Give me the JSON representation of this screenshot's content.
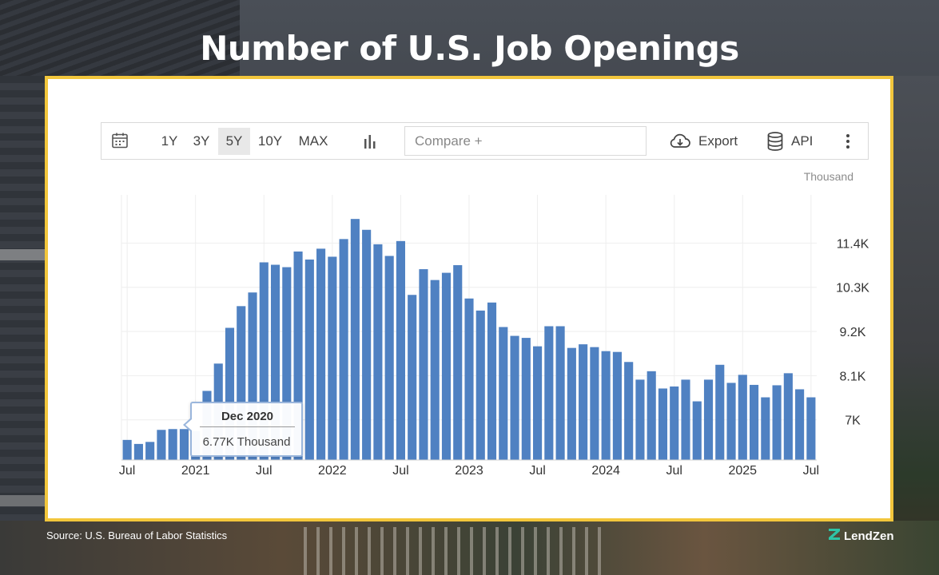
{
  "headline": "Number of U.S. Job Openings",
  "toolbar": {
    "ranges": [
      "1Y",
      "3Y",
      "5Y",
      "10Y",
      "MAX"
    ],
    "active_range": "5Y",
    "compare_placeholder": "Compare +",
    "export_label": "Export",
    "api_label": "API",
    "icons": [
      "calendar-icon",
      "bar-chart-icon",
      "cloud-download-icon",
      "database-icon",
      "more-vertical-icon"
    ]
  },
  "tooltip": {
    "title": "Dec 2020",
    "value": "6.77K Thousand"
  },
  "source": "Source: U.S. Bureau of Labor Statistics",
  "brand": "LendZen",
  "colors": {
    "bar": "#4f81c2",
    "frame": "#f2c63c",
    "tooltip_border": "#9ab6dc"
  },
  "chart_data": {
    "type": "bar",
    "unit_label": "Thousand",
    "x_tick_labels": [
      "Jul",
      "2021",
      "Jul",
      "2022",
      "Jul",
      "2023",
      "Jul",
      "2024",
      "Jul",
      "2025",
      "Jul"
    ],
    "y_tick_labels": [
      "7K",
      "8.1K",
      "9.2K",
      "10.3K",
      "11.4K"
    ],
    "y_ticks": [
      7000,
      8100,
      9200,
      10300,
      11400
    ],
    "ylim": [
      6000,
      12600
    ],
    "grid": true,
    "categories": [
      "Jul 2020",
      "Aug 2020",
      "Sep 2020",
      "Oct 2020",
      "Nov 2020",
      "Dec 2020",
      "Jan 2021",
      "Feb 2021",
      "Mar 2021",
      "Apr 2021",
      "May 2021",
      "Jun 2021",
      "Jul 2021",
      "Aug 2021",
      "Sep 2021",
      "Oct 2021",
      "Nov 2021",
      "Dec 2021",
      "Jan 2022",
      "Feb 2022",
      "Mar 2022",
      "Apr 2022",
      "May 2022",
      "Jun 2022",
      "Jul 2022",
      "Aug 2022",
      "Sep 2022",
      "Oct 2022",
      "Nov 2022",
      "Dec 2022",
      "Jan 2023",
      "Feb 2023",
      "Mar 2023",
      "Apr 2023",
      "May 2023",
      "Jun 2023",
      "Jul 2023",
      "Aug 2023",
      "Sep 2023",
      "Oct 2023",
      "Nov 2023",
      "Dec 2023",
      "Jan 2024",
      "Feb 2024",
      "Mar 2024",
      "Apr 2024",
      "May 2024",
      "Jun 2024",
      "Jul 2024",
      "Aug 2024",
      "Sep 2024",
      "Oct 2024",
      "Nov 2024",
      "Dec 2024",
      "Jan 2025",
      "Feb 2025",
      "Mar 2025",
      "Apr 2025",
      "May 2025",
      "Jun 2025",
      "Jul 2025"
    ],
    "values": [
      6500,
      6400,
      6450,
      6750,
      6770,
      6770,
      6720,
      7720,
      8400,
      9290,
      9830,
      10170,
      10920,
      10860,
      10800,
      11190,
      10990,
      11260,
      11060,
      11500,
      12000,
      11730,
      11370,
      11080,
      11450,
      10110,
      10750,
      10480,
      10660,
      10850,
      10020,
      9720,
      9920,
      9310,
      9090,
      9040,
      8830,
      9330,
      9330,
      8790,
      8880,
      8810,
      8710,
      8690,
      8440,
      8000,
      8210,
      7780,
      7830,
      8000,
      7460,
      8000,
      8370,
      7920,
      8120,
      7870,
      7560,
      7860,
      8160,
      7760,
      7560
    ],
    "highlight_category": "Dec 2020"
  }
}
